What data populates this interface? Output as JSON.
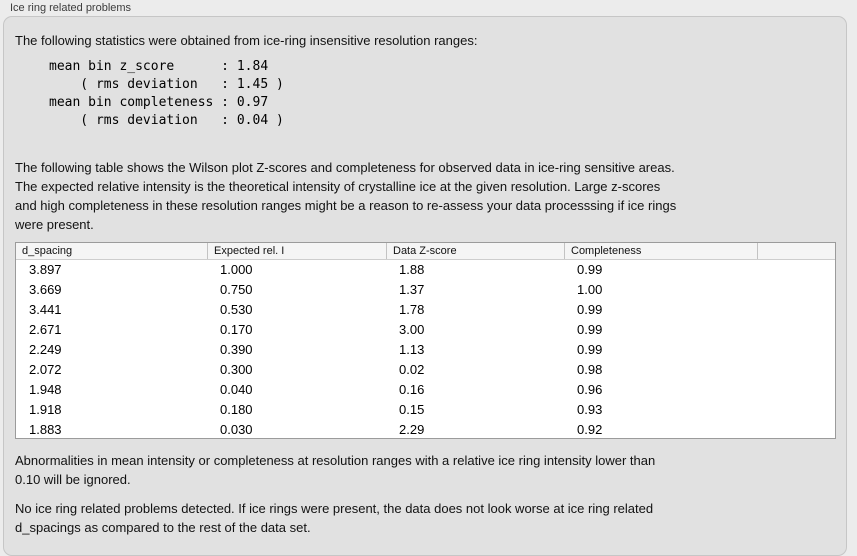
{
  "panel": {
    "title": "Ice ring related problems"
  },
  "intro": "The following statistics were obtained from ice-ring insensitive resolution ranges:",
  "stats": {
    "block": "mean bin z_score      : 1.84\n    ( rms deviation   : 1.45 )\nmean bin completeness : 0.97\n    ( rms deviation   : 0.04 )",
    "mean_bin_z_score": "1.84",
    "z_score_rms_deviation": "1.45",
    "mean_bin_completeness": "0.97",
    "completeness_rms_deviation": "0.04"
  },
  "description": "The following table shows the Wilson plot Z-scores and completeness for observed data in ice-ring sensitive areas.\nThe expected relative intensity is the theoretical intensity of crystalline ice at the given resolution. Large z-scores\nand high completeness in these resolution ranges might be a reason to re-assess your data processsing if ice rings\nwere present.",
  "table": {
    "headers": [
      "d_spacing",
      "Expected rel. I",
      "Data Z-score",
      "Completeness",
      ""
    ],
    "rows": [
      [
        "3.897",
        "1.000",
        "1.88",
        "0.99"
      ],
      [
        "3.669",
        "0.750",
        "1.37",
        "1.00"
      ],
      [
        "3.441",
        "0.530",
        "1.78",
        "0.99"
      ],
      [
        "2.671",
        "0.170",
        "3.00",
        "0.99"
      ],
      [
        "2.249",
        "0.390",
        "1.13",
        "0.99"
      ],
      [
        "2.072",
        "0.300",
        "0.02",
        "0.98"
      ],
      [
        "1.948",
        "0.040",
        "0.16",
        "0.96"
      ],
      [
        "1.918",
        "0.180",
        "0.15",
        "0.93"
      ],
      [
        "1.883",
        "0.030",
        "2.29",
        "0.92"
      ]
    ]
  },
  "note": "Abnormalities in mean intensity or completeness at resolution ranges with a relative ice ring intensity lower than\n0.10 will be ignored.",
  "verdict": "No ice ring related problems detected. If ice rings were present, the data does not look worse at ice ring related\nd_spacings as compared to the rest of the data set."
}
